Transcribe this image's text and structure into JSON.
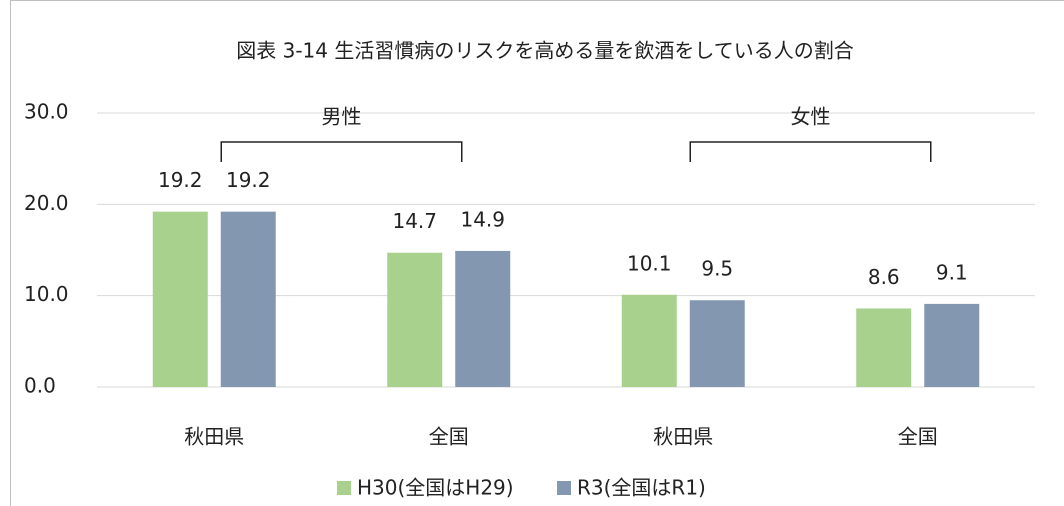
{
  "chart_data": {
    "type": "bar",
    "title": "図表 3-14 生活習慣病のリスクを高める量を飲酒をしている人の割合",
    "categories": [
      "秋田県",
      "全国",
      "秋田県",
      "全国"
    ],
    "groups": [
      "男性",
      "女性"
    ],
    "series": [
      {
        "name": "H30(全国はH29)",
        "color": "#a9d18e",
        "values": [
          19.2,
          14.7,
          10.1,
          8.6
        ]
      },
      {
        "name": "R3(全国はR1)",
        "color": "#8497b0",
        "values": [
          19.2,
          14.9,
          9.5,
          9.1
        ]
      }
    ],
    "ylim": [
      0,
      30
    ],
    "yticks": [
      {
        "value": 0,
        "label": "0.0"
      },
      {
        "value": 10,
        "label": "10.0"
      },
      {
        "value": 20,
        "label": "20.0"
      },
      {
        "value": 30,
        "label": "30.0"
      }
    ],
    "grid": true,
    "legend": "bottom"
  }
}
